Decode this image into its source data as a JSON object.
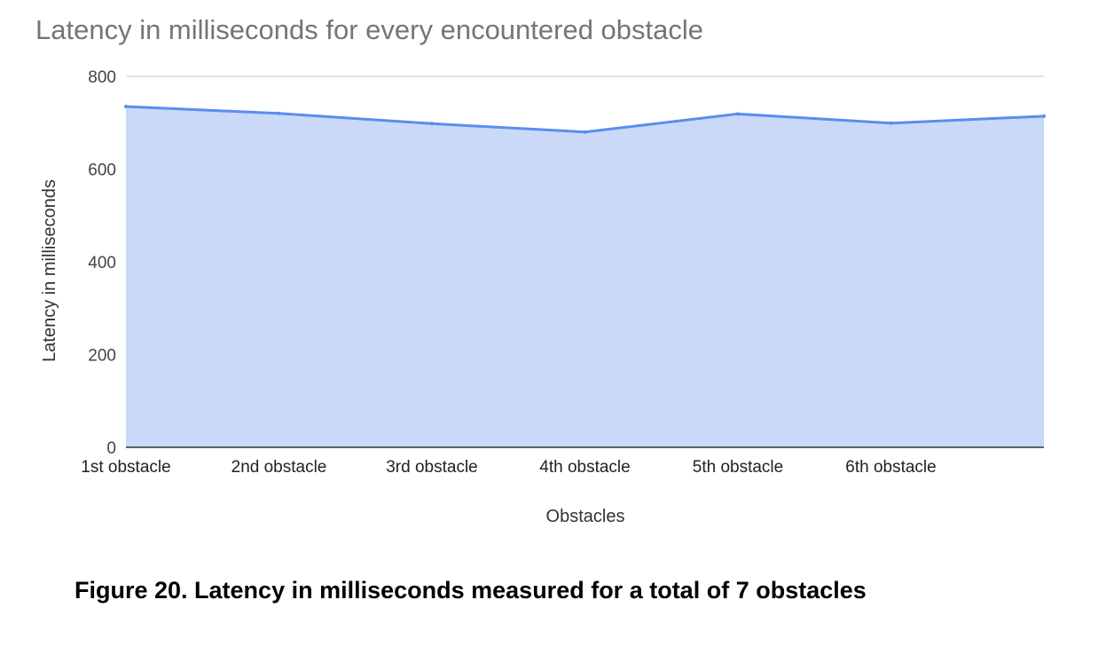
{
  "chart_data": {
    "type": "area",
    "title": "Latency in milliseconds for every encountered obstacle",
    "xlabel": "Obstacles",
    "ylabel": "Latency in milliseconds",
    "categories": [
      "1st obstacle",
      "2nd obstacle",
      "3rd obstacle",
      "4th obstacle",
      "5th obstacle",
      "6th obstacle",
      ""
    ],
    "series": [
      {
        "values": [
          735,
          720,
          698,
          680,
          719,
          699,
          714
        ]
      }
    ],
    "ylim": [
      0,
      800
    ],
    "yticks": [
      0,
      200,
      400,
      600,
      800
    ],
    "grid": true,
    "colors": {
      "line": "#5b8def",
      "fill": "#c9d9f7",
      "grid": "#c7cbd3",
      "title": "#757575",
      "tick": "#444444"
    }
  },
  "caption": "Figure 20.  Latency in milliseconds measured for a total of 7 obstacles"
}
